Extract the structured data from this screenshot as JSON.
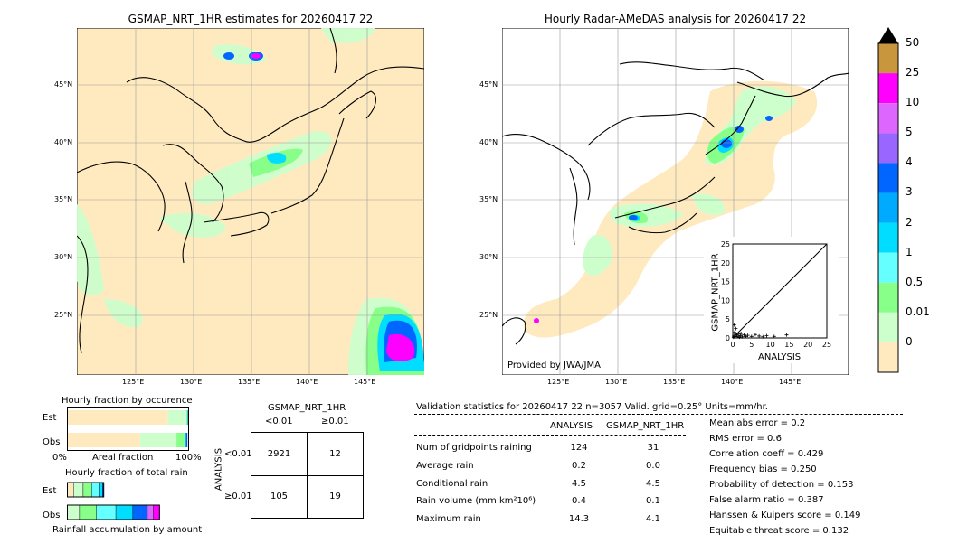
{
  "left_map": {
    "title": "GSMAP_NRT_1HR estimates for 20260417 22",
    "lon_ticks": [
      "125°E",
      "130°E",
      "135°E",
      "140°E",
      "145°E"
    ],
    "lat_ticks": [
      "45°N",
      "40°N",
      "35°N",
      "30°N",
      "25°N"
    ]
  },
  "right_map": {
    "title": "Hourly Radar-AMeDAS analysis for 20260417 22",
    "lon_ticks": [
      "125°E",
      "130°E",
      "135°E",
      "140°E",
      "145°E"
    ],
    "lat_ticks": [
      "45°N",
      "40°N",
      "35°N",
      "30°N",
      "25°N"
    ],
    "credit": "Provided by JWA/JMA"
  },
  "colorbar": {
    "labels": [
      "50",
      "25",
      "10",
      "5",
      "4",
      "3",
      "2",
      "1",
      "0.5",
      "0.01",
      "0"
    ],
    "colors": [
      "#c8963c",
      "#ff00ff",
      "#dd66ff",
      "#9966ff",
      "#0066ff",
      "#00aaff",
      "#00ddff",
      "#66ffff",
      "#88ff88",
      "#ccffcc",
      "#ffeac0"
    ],
    "over_color": "#000000"
  },
  "scatter": {
    "xlabel": "ANALYSIS",
    "ylabel": "GSMAP_NRT_1HR",
    "ticks": [
      "0",
      "5",
      "10",
      "15",
      "20",
      "25"
    ]
  },
  "fraction_occurrence": {
    "title": "Hourly fraction by occurence",
    "rows": [
      "Est",
      "Obs"
    ],
    "xlabel_left": "0%",
    "xlabel_mid": "Areal fraction",
    "xlabel_right": "100%"
  },
  "fraction_rain": {
    "title": "Hourly fraction of total rain",
    "rows": [
      "Est",
      "Obs"
    ],
    "xlabel": "Rainfall accumulation by amount"
  },
  "contingency": {
    "title": "GSMAP_NRT_1HR",
    "col_labels": [
      "<0.01",
      "≥0.01"
    ],
    "row_axis": "ANALYSIS",
    "row_labels": [
      "<0.01",
      "≥0.01"
    ],
    "cells": [
      [
        "2921",
        "12"
      ],
      [
        "105",
        "19"
      ]
    ]
  },
  "validation": {
    "header": "Validation statistics for 20260417 22  n=3057 Valid. grid=0.25° Units=mm/hr.",
    "col_analysis": "ANALYSIS",
    "col_gsmap": "GSMAP_NRT_1HR",
    "rows": [
      {
        "label": "Num of gridpoints raining",
        "analysis": "124",
        "gsmap": "31"
      },
      {
        "label": "Average rain",
        "analysis": "0.2",
        "gsmap": "0.0"
      },
      {
        "label": "Conditional rain",
        "analysis": "4.5",
        "gsmap": "4.5"
      },
      {
        "label": "Rain volume (mm km²10⁶)",
        "analysis": "0.4",
        "gsmap": "0.1"
      },
      {
        "label": "Maximum rain",
        "analysis": "14.3",
        "gsmap": "4.1"
      }
    ],
    "scores": [
      "Mean abs error =    0.2",
      "RMS error =    0.6",
      "Correlation coeff =  0.429",
      "Frequency bias =  0.250",
      "Probability of detection =  0.153",
      "False alarm ratio =  0.387",
      "Hanssen & Kuipers score =  0.149",
      "Equitable threat score =  0.132"
    ]
  },
  "chart_data": [
    {
      "type": "scatter",
      "xlabel": "ANALYSIS",
      "ylabel": "GSMAP_NRT_1HR",
      "xlim": [
        0,
        25
      ],
      "ylim": [
        0,
        25
      ],
      "points": [
        [
          0.3,
          0.5
        ],
        [
          0.5,
          1.5
        ],
        [
          0.6,
          0.3
        ],
        [
          0.8,
          2.5
        ],
        [
          1.0,
          0.8
        ],
        [
          1.2,
          0.4
        ],
        [
          1.5,
          1.0
        ],
        [
          2.0,
          0.6
        ],
        [
          2.5,
          0.3
        ],
        [
          3.0,
          0.8
        ],
        [
          3.5,
          0.4
        ],
        [
          4.0,
          0.7
        ],
        [
          5.0,
          0.4
        ],
        [
          6.0,
          0.9
        ],
        [
          7.0,
          0.5
        ],
        [
          8.0,
          0.3
        ],
        [
          9.0,
          0.6
        ],
        [
          11.0,
          0.4
        ],
        [
          14.3,
          0.8
        ],
        [
          0.2,
          0.2
        ],
        [
          1.8,
          0.2
        ],
        [
          2.2,
          1.2
        ],
        [
          0.4,
          3.5
        ],
        [
          0.7,
          1.0
        ]
      ]
    },
    {
      "type": "table",
      "title": "GSMAP_NRT_1HR",
      "columns": [
        "<0.01",
        "≥0.01"
      ],
      "rows": [
        "<0.01",
        "≥0.01"
      ],
      "values": [
        [
          2921,
          12
        ],
        [
          105,
          19
        ]
      ]
    },
    {
      "type": "bar",
      "title": "Hourly fraction by occurence",
      "categories": [
        "Est",
        "Obs"
      ],
      "series": [
        {
          "color": "#ffeac0",
          "values": [
            0.83,
            0.6
          ]
        },
        {
          "color": "#ccffcc",
          "values": [
            0.15,
            0.3
          ]
        },
        {
          "color": "#88ff88",
          "values": [
            0.01,
            0.07
          ]
        },
        {
          "color": "#00aaff",
          "values": [
            0.005,
            0.01
          ]
        },
        {
          "color": "#0066ff",
          "values": [
            0.005,
            0.01
          ]
        }
      ]
    },
    {
      "type": "bar",
      "title": "Hourly fraction of total rain",
      "categories": [
        "Est",
        "Obs"
      ],
      "series": [
        {
          "color": "#ffeac0",
          "values": [
            0.05,
            0.0
          ]
        },
        {
          "color": "#ccffcc",
          "values": [
            0.08,
            0.1
          ]
        },
        {
          "color": "#88ff88",
          "values": [
            0.07,
            0.14
          ]
        },
        {
          "color": "#66ffff",
          "values": [
            0.06,
            0.16
          ]
        },
        {
          "color": "#00ddff",
          "values": [
            0.03,
            0.14
          ]
        },
        {
          "color": "#0066ff",
          "values": [
            0.01,
            0.12
          ]
        },
        {
          "color": "#dd66ff",
          "values": [
            0.0,
            0.05
          ]
        },
        {
          "color": "#ff00ff",
          "values": [
            0.0,
            0.05
          ]
        }
      ]
    }
  ]
}
